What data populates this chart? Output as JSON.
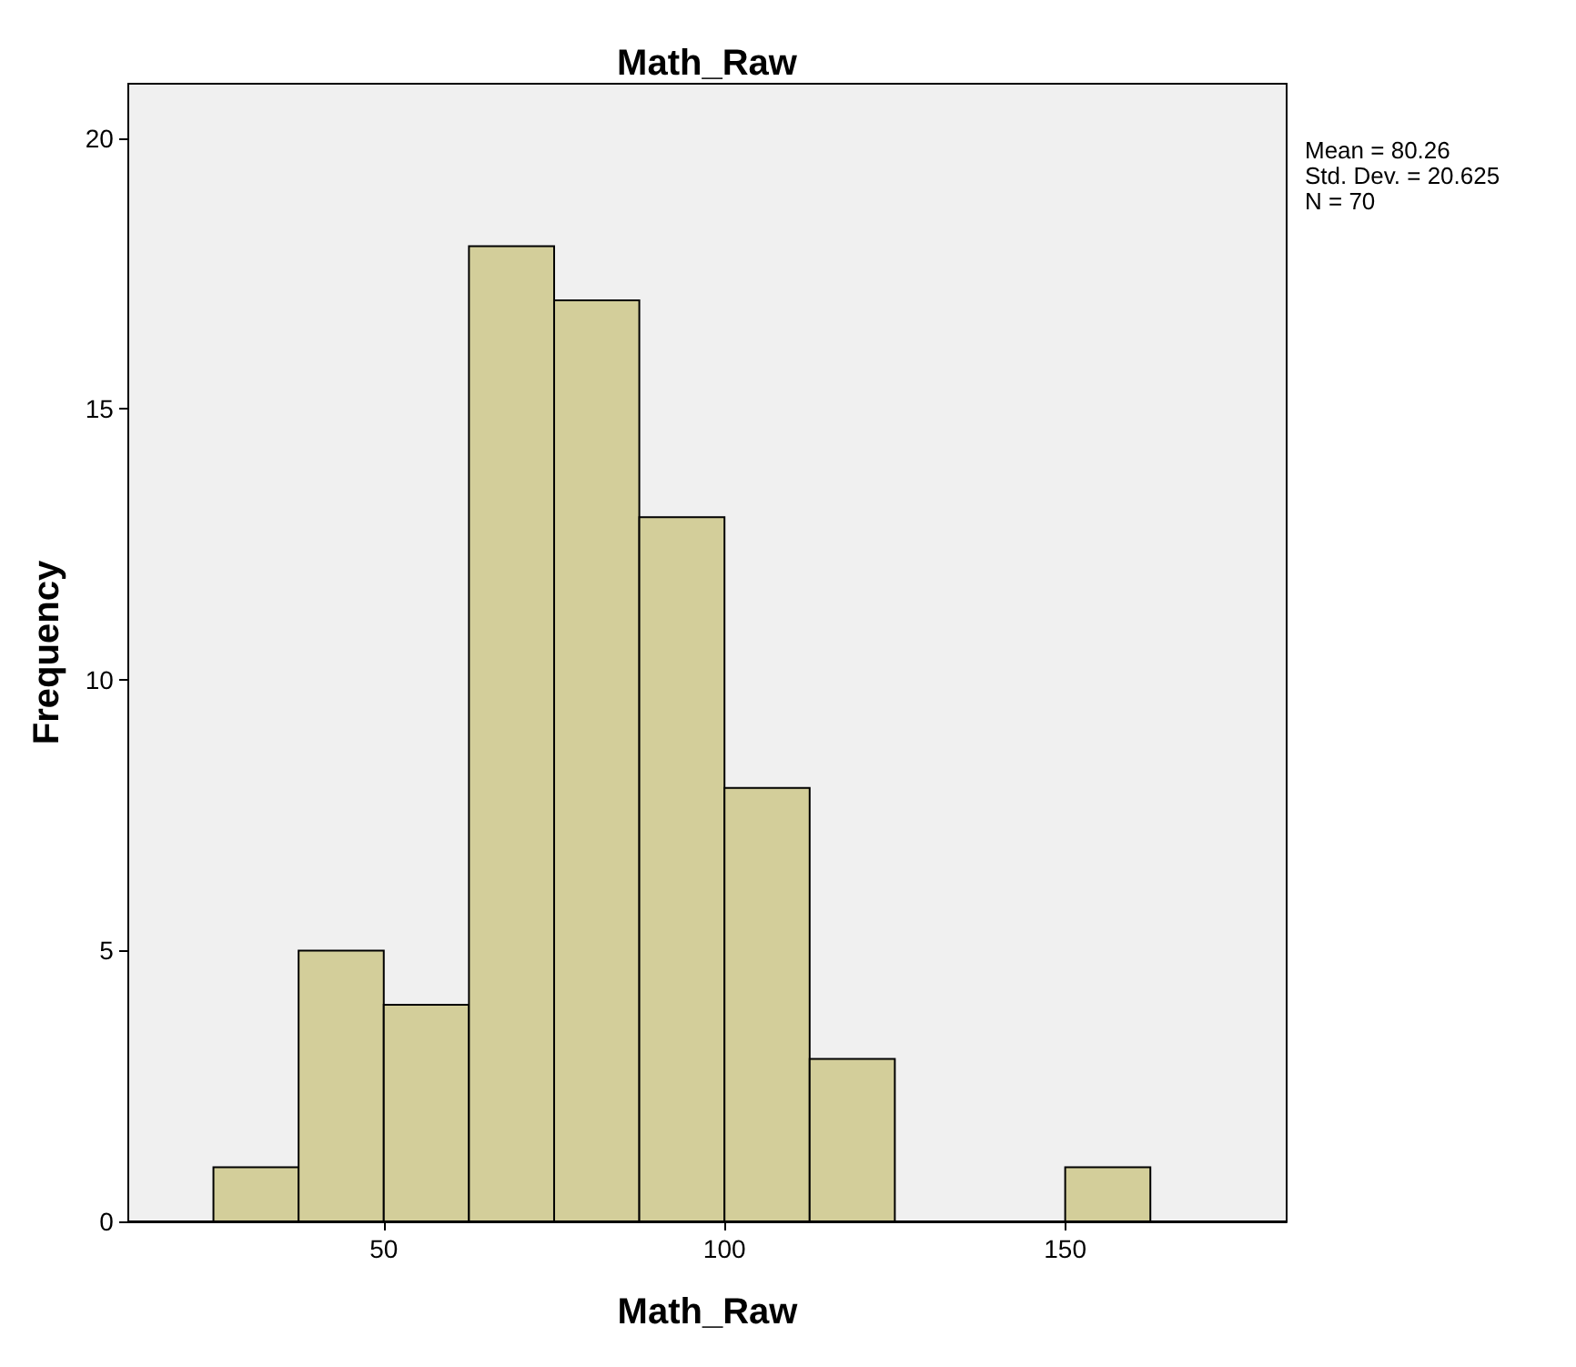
{
  "chart_data": {
    "type": "histogram",
    "title": "Math_Raw",
    "xlabel": "Math_Raw",
    "ylabel": "Frequency",
    "bins": [
      25,
      37.5,
      50,
      62.5,
      75,
      87.5,
      100,
      112.5,
      125,
      137.5,
      150,
      162.5
    ],
    "values": [
      1,
      5,
      4,
      18,
      17,
      13,
      8,
      3,
      0,
      0,
      1
    ],
    "color": "#d3ce9a",
    "xlim": [
      12.5,
      182.5
    ],
    "xticks": [
      50,
      100,
      150
    ],
    "ylim": [
      0,
      21
    ],
    "yticks": [
      0,
      5,
      10,
      15,
      20
    ],
    "grid": false,
    "annotations": [
      "Mean = 80.26",
      "Std. Dev. = 20.625",
      "N = 70"
    ]
  }
}
